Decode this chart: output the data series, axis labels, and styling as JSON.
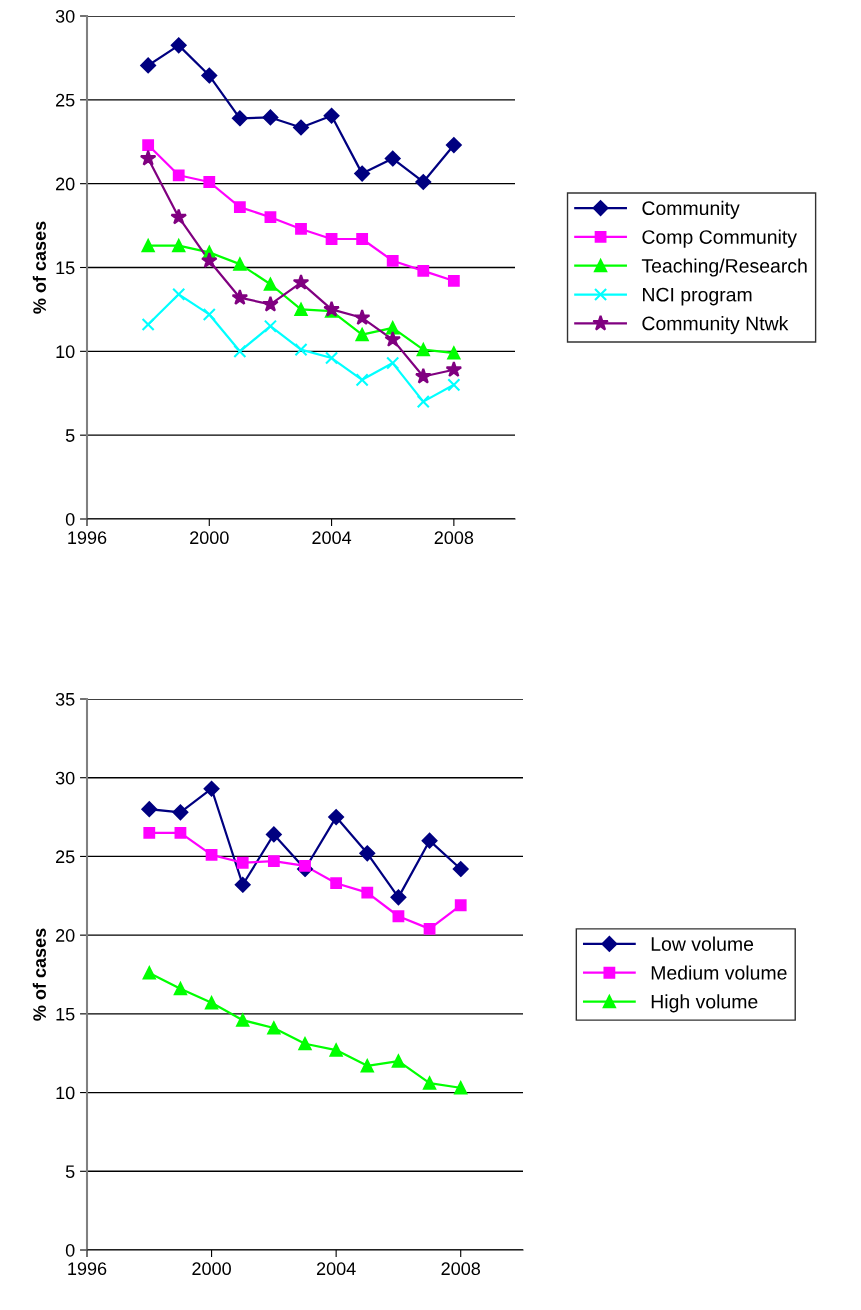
{
  "chart_data": [
    {
      "type": "line",
      "ylabel": "% of cases",
      "x": [
        1998,
        1999,
        2000,
        2001,
        2002,
        2003,
        2004,
        2005,
        2006,
        2007,
        2008
      ],
      "xlim": [
        1996,
        2010
      ],
      "xticks": [
        1996,
        2000,
        2004,
        2008
      ],
      "ylim": [
        0,
        30
      ],
      "yticks": [
        0,
        5,
        10,
        15,
        20,
        25,
        30
      ],
      "grid": "y",
      "legend": "right",
      "line_style": "solid",
      "series": [
        {
          "name": "Community",
          "color": "#000080",
          "marker": "diamond",
          "values": [
            27.05,
            28.25,
            26.45,
            23.9,
            23.95,
            23.35,
            24.05,
            20.6,
            21.5,
            20.1,
            22.3
          ]
        },
        {
          "name": "Comp Community",
          "color": "#ff00ff",
          "marker": "square",
          "values": [
            22.3,
            20.5,
            20.1,
            18.6,
            18.0,
            17.3,
            16.7,
            16.7,
            15.4,
            14.8,
            14.2
          ]
        },
        {
          "name": "Teaching/Research",
          "color": "#00ff00",
          "marker": "triangle",
          "values": [
            16.3,
            16.3,
            15.9,
            15.2,
            14.0,
            12.5,
            12.4,
            11.0,
            11.4,
            10.1,
            9.9
          ]
        },
        {
          "name": "NCI program",
          "color": "#00ffff",
          "marker": "cross",
          "values": [
            11.6,
            13.4,
            12.2,
            10.0,
            11.5,
            10.1,
            9.6,
            8.3,
            9.3,
            7.0,
            8.0
          ]
        },
        {
          "name": "Community Ntwk",
          "color": "#800080",
          "marker": "star",
          "values": [
            21.5,
            18.0,
            15.4,
            13.2,
            12.8,
            14.1,
            12.5,
            12.0,
            10.7,
            8.5,
            8.9
          ]
        }
      ]
    },
    {
      "type": "line",
      "ylabel": "% of cases",
      "x": [
        1998,
        1999,
        2000,
        2001,
        2002,
        2003,
        2004,
        2005,
        2006,
        2007,
        2008
      ],
      "xlim": [
        1996,
        2010
      ],
      "xticks": [
        1996,
        2000,
        2004,
        2008
      ],
      "ylim": [
        0,
        35
      ],
      "yticks": [
        0,
        5,
        10,
        15,
        20,
        25,
        30,
        35
      ],
      "grid": "y",
      "legend": "right",
      "line_style": "solid",
      "series": [
        {
          "name": "Low volume",
          "color": "#000080",
          "marker": "diamond",
          "values": [
            28.0,
            27.8,
            29.3,
            23.2,
            26.4,
            24.2,
            27.5,
            25.2,
            22.4,
            26.0,
            24.2
          ]
        },
        {
          "name": "Medium volume",
          "color": "#ff00ff",
          "marker": "square",
          "values": [
            26.5,
            26.5,
            25.1,
            24.6,
            24.7,
            24.4,
            23.3,
            22.7,
            21.2,
            20.4,
            21.9
          ]
        },
        {
          "name": "High volume",
          "color": "#00ff00",
          "marker": "triangle",
          "values": [
            17.6,
            16.6,
            15.7,
            14.6,
            14.1,
            13.1,
            12.7,
            11.7,
            12.0,
            10.6,
            10.3
          ]
        }
      ]
    }
  ]
}
